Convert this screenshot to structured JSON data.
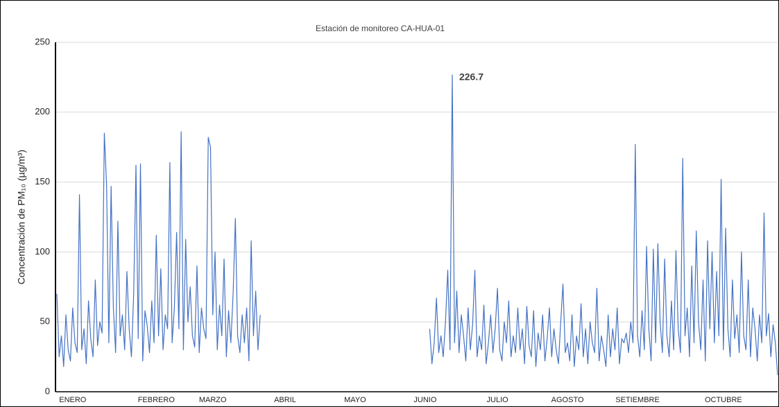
{
  "chart_data": {
    "type": "line",
    "title": "Estación de monitoreo CA-HUA-01",
    "y_label": "Concentración de PM₁₀ (µg/m³)",
    "xlim": [
      0,
      319
    ],
    "xticks": [
      {
        "value": 7,
        "label": "ENERO"
      },
      {
        "value": 44,
        "label": "FEBRERO"
      },
      {
        "value": 69,
        "label": "MARZO"
      },
      {
        "value": 101,
        "label": "ABRIL"
      },
      {
        "value": 132,
        "label": "MAYO"
      },
      {
        "value": 163,
        "label": "JUNIO"
      },
      {
        "value": 195,
        "label": "JULIO"
      },
      {
        "value": 226,
        "label": "AGOSTO"
      },
      {
        "value": 257,
        "label": "SETIEMBRE"
      },
      {
        "value": 295,
        "label": "OCTUBRE"
      }
    ],
    "ylim": [
      0,
      250
    ],
    "yticks": [
      0,
      50,
      100,
      150,
      200,
      250
    ],
    "grid": true,
    "series": [
      {
        "color": "#4472c4",
        "values": [
          70,
          25,
          40,
          18,
          55,
          30,
          22,
          60,
          35,
          28,
          141,
          30,
          45,
          20,
          65,
          38,
          25,
          80,
          33,
          50,
          42,
          185,
          148,
          35,
          147,
          60,
          28,
          122,
          40,
          55,
          30,
          86,
          45,
          25,
          70,
          162,
          38,
          163,
          22,
          58,
          47,
          28,
          65,
          35,
          112,
          40,
          88,
          30,
          55,
          45,
          164,
          35,
          60,
          114,
          45,
          186,
          30,
          109,
          50,
          75,
          40,
          32,
          90,
          28,
          60,
          45,
          38,
          182,
          175,
          55,
          100,
          30,
          62,
          40,
          95,
          25,
          58,
          35,
          70,
          124,
          40,
          28,
          55,
          35,
          60,
          22,
          108,
          40,
          72,
          30,
          55,
          null,
          null,
          null,
          null,
          null,
          null,
          null,
          null,
          null,
          null,
          null,
          null,
          null,
          null,
          null,
          null,
          null,
          null,
          null,
          null,
          null,
          null,
          null,
          null,
          null,
          null,
          null,
          null,
          null,
          null,
          null,
          null,
          null,
          null,
          null,
          null,
          null,
          null,
          null,
          null,
          null,
          null,
          null,
          null,
          null,
          null,
          null,
          null,
          null,
          null,
          null,
          null,
          null,
          null,
          null,
          null,
          null,
          null,
          null,
          null,
          null,
          null,
          null,
          null,
          null,
          null,
          null,
          null,
          null,
          null,
          null,
          null,
          null,
          null,
          45,
          20,
          35,
          67,
          28,
          40,
          25,
          50,
          87,
          30,
          226.7,
          35,
          72,
          28,
          55,
          40,
          22,
          60,
          30,
          48,
          87,
          25,
          40,
          30,
          62,
          20,
          35,
          55,
          28,
          45,
          74,
          30,
          22,
          50,
          35,
          65,
          25,
          40,
          28,
          60,
          30,
          45,
          20,
          61,
          33,
          25,
          58,
          18,
          42,
          30,
          55,
          22,
          38,
          60,
          25,
          45,
          30,
          20,
          50,
          77,
          28,
          35,
          22,
          55,
          18,
          40,
          30,
          63,
          25,
          45,
          20,
          50,
          35,
          28,
          74,
          22,
          40,
          30,
          18,
          55,
          25,
          45,
          30,
          60,
          20,
          38,
          35,
          42,
          28,
          50,
          35,
          177,
          40,
          25,
          58,
          30,
          104,
          45,
          22,
          102,
          35,
          106,
          50,
          28,
          95,
          40,
          25,
          65,
          30,
          101,
          45,
          28,
          167,
          40,
          60,
          25,
          90,
          35,
          115,
          50,
          30,
          80,
          22,
          108,
          45,
          100,
          35,
          86,
          40,
          152,
          30,
          117,
          45,
          25,
          80,
          38,
          55,
          28,
          100,
          40,
          30,
          80,
          25,
          60,
          45,
          22,
          55,
          35,
          128,
          40,
          56,
          25,
          48,
          35,
          12
        ]
      }
    ]
  }
}
